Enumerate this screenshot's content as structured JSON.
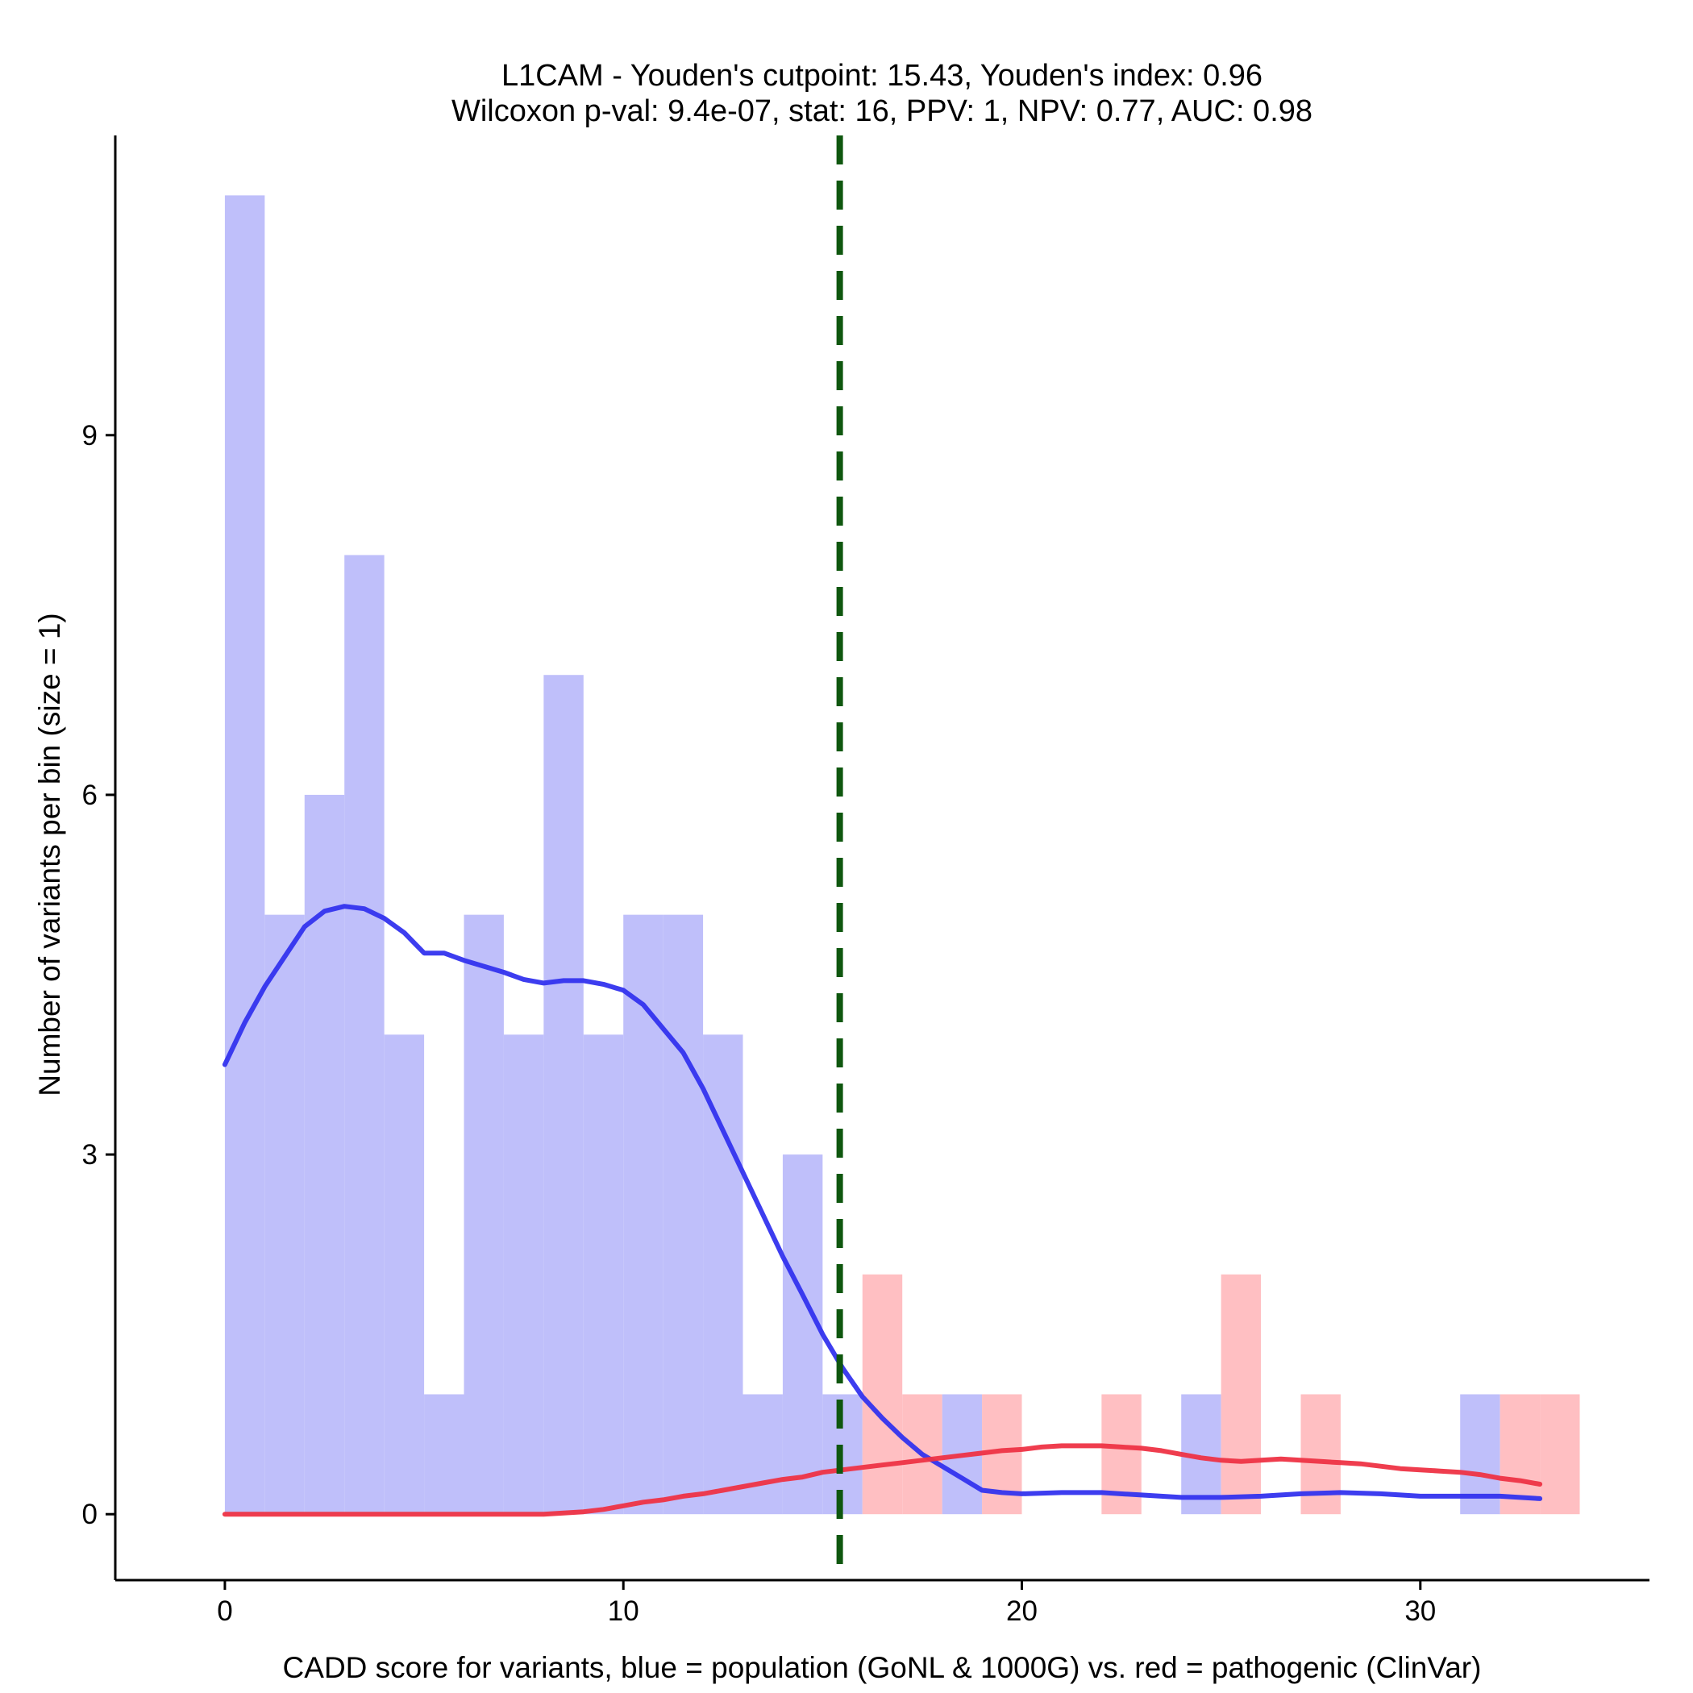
{
  "chart_data": {
    "type": "bar",
    "title_lines": [
      "L1CAM - Youden's cutpoint: 15.43, Youden's index: 0.96",
      "Wilcoxon p-val: 9.4e-07, stat: 16, PPV: 1, NPV: 0.77, AUC: 0.98"
    ],
    "xlabel": "CADD score for variants, blue = population (GoNL & 1000G) vs. red = pathogenic (ClinVar)",
    "ylabel": "Number of variants per bin (size = 1)",
    "xlim": [
      -2.75,
      35.75
    ],
    "ylim": [
      -0.55,
      11.5
    ],
    "x_ticks": [
      0,
      10,
      20,
      30
    ],
    "y_ticks": [
      0,
      3,
      6,
      9
    ],
    "grid": false,
    "bin_width": 1,
    "cutpoint": 15.43,
    "series": [
      {
        "name": "population (GoNL & 1000G)",
        "color": "#bfbffa",
        "bins": [
          {
            "x0": 0,
            "count": 11
          },
          {
            "x0": 1,
            "count": 5
          },
          {
            "x0": 2,
            "count": 6
          },
          {
            "x0": 3,
            "count": 8
          },
          {
            "x0": 4,
            "count": 4
          },
          {
            "x0": 5,
            "count": 1
          },
          {
            "x0": 6,
            "count": 5
          },
          {
            "x0": 7,
            "count": 4
          },
          {
            "x0": 8,
            "count": 7
          },
          {
            "x0": 9,
            "count": 4
          },
          {
            "x0": 10,
            "count": 5
          },
          {
            "x0": 11,
            "count": 5
          },
          {
            "x0": 12,
            "count": 4
          },
          {
            "x0": 13,
            "count": 1
          },
          {
            "x0": 14,
            "count": 3
          },
          {
            "x0": 15,
            "count": 1
          },
          {
            "x0": 18,
            "count": 1
          },
          {
            "x0": 24,
            "count": 1
          },
          {
            "x0": 31,
            "count": 1
          }
        ]
      },
      {
        "name": "pathogenic (ClinVar)",
        "color": "#ffbfc2",
        "bins": [
          {
            "x0": 16,
            "count": 2
          },
          {
            "x0": 17,
            "count": 1
          },
          {
            "x0": 19,
            "count": 1
          },
          {
            "x0": 22,
            "count": 1
          },
          {
            "x0": 25,
            "count": 2
          },
          {
            "x0": 27,
            "count": 1
          },
          {
            "x0": 32,
            "count": 1
          },
          {
            "x0": 33,
            "count": 1
          }
        ]
      }
    ],
    "density_curves": [
      {
        "name": "population (GoNL & 1000G)",
        "color": "#3333ee",
        "x": [
          0,
          0.5,
          1,
          1.5,
          2,
          2.5,
          3,
          3.5,
          4,
          4.5,
          5,
          5.5,
          6,
          6.5,
          7,
          7.5,
          8,
          8.5,
          9,
          9.5,
          10,
          10.5,
          11,
          11.5,
          12,
          12.5,
          13,
          13.5,
          14,
          14.5,
          15,
          15.5,
          16,
          16.5,
          17,
          17.5,
          18,
          18.5,
          19,
          19.5,
          20,
          21,
          22,
          23,
          24,
          25,
          26,
          27,
          28,
          29,
          30,
          31,
          32,
          33
        ],
        "y": [
          3.75,
          4.1,
          4.4,
          4.65,
          4.9,
          5.03,
          5.07,
          5.05,
          4.97,
          4.85,
          4.68,
          4.68,
          4.62,
          4.57,
          4.52,
          4.46,
          4.43,
          4.45,
          4.45,
          4.42,
          4.37,
          4.25,
          4.05,
          3.85,
          3.55,
          3.2,
          2.85,
          2.5,
          2.15,
          1.83,
          1.5,
          1.22,
          0.98,
          0.8,
          0.64,
          0.5,
          0.4,
          0.3,
          0.2,
          0.18,
          0.17,
          0.18,
          0.18,
          0.16,
          0.14,
          0.14,
          0.15,
          0.17,
          0.18,
          0.17,
          0.15,
          0.15,
          0.15,
          0.13
        ]
      },
      {
        "name": "pathogenic (ClinVar)",
        "color": "#ee3344",
        "x": [
          0,
          2,
          4,
          6,
          8,
          8.5,
          9,
          9.5,
          10,
          10.5,
          11,
          11.5,
          12,
          12.5,
          13,
          13.5,
          14,
          14.5,
          15,
          15.5,
          16,
          16.5,
          17,
          17.5,
          18,
          18.5,
          19,
          19.5,
          20,
          20.5,
          21,
          21.5,
          22,
          22.5,
          23,
          23.5,
          24,
          24.5,
          25,
          25.5,
          26,
          26.5,
          27,
          27.5,
          28,
          28.5,
          29,
          29.5,
          30,
          30.5,
          31,
          31.5,
          32,
          32.5,
          33
        ],
        "y": [
          0,
          0,
          0,
          0,
          0,
          0.01,
          0.02,
          0.04,
          0.07,
          0.1,
          0.12,
          0.15,
          0.17,
          0.2,
          0.23,
          0.26,
          0.29,
          0.31,
          0.35,
          0.37,
          0.39,
          0.41,
          0.43,
          0.45,
          0.47,
          0.49,
          0.51,
          0.53,
          0.54,
          0.56,
          0.57,
          0.57,
          0.57,
          0.56,
          0.55,
          0.53,
          0.5,
          0.47,
          0.45,
          0.44,
          0.45,
          0.46,
          0.45,
          0.44,
          0.43,
          0.42,
          0.4,
          0.38,
          0.37,
          0.36,
          0.35,
          0.33,
          0.3,
          0.28,
          0.25
        ]
      }
    ],
    "cutpoint_line_color": "#0f570f"
  }
}
